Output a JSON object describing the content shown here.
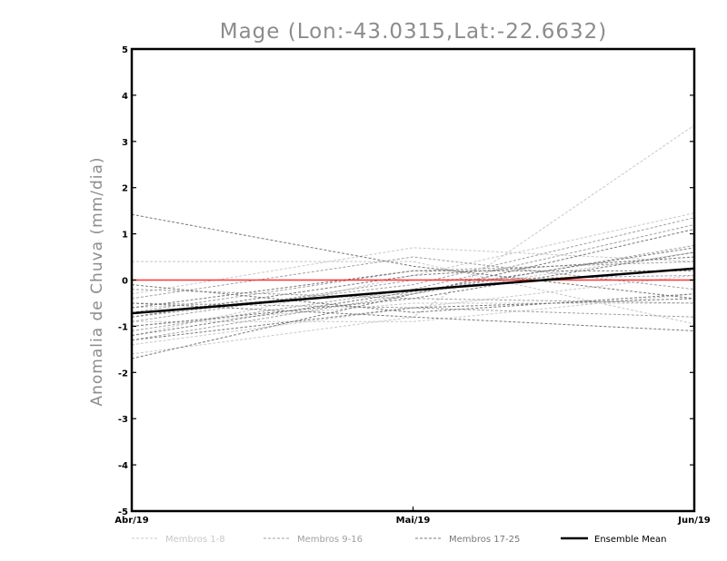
{
  "chart_data": {
    "type": "line",
    "title": "Mage (Lon:-43.0315,Lat:-22.6632)",
    "ylabel": "Anomalia de Chuva (mm/dia)",
    "xlabel": "",
    "categories": [
      "Abr/19",
      "Mai/19",
      "Jun/19"
    ],
    "ylim": [
      -5,
      5
    ],
    "yticks": [
      -5,
      -4,
      -3,
      -2,
      -1,
      0,
      1,
      2,
      3,
      4,
      5
    ],
    "reference_line": {
      "value": 0,
      "color": "#ff3333"
    },
    "groups": [
      {
        "name": "Membros 1-8",
        "color": "#c8c8c8",
        "dash": true,
        "width": 1
      },
      {
        "name": "Membros 9-16",
        "color": "#a0a0a0",
        "dash": true,
        "width": 1
      },
      {
        "name": "Membros 17-25",
        "color": "#787878",
        "dash": true,
        "width": 1
      },
      {
        "name": "Ensemble Mean",
        "color": "#000000",
        "dash": false,
        "width": 2.5
      }
    ],
    "series": [
      {
        "group": 0,
        "values": [
          -1.6,
          -0.8,
          3.35
        ]
      },
      {
        "group": 0,
        "values": [
          -1.2,
          0.1,
          1.45
        ]
      },
      {
        "group": 0,
        "values": [
          0.4,
          0.4,
          -0.95
        ]
      },
      {
        "group": 0,
        "values": [
          -0.9,
          -0.9,
          -0.3
        ]
      },
      {
        "group": 0,
        "values": [
          -0.6,
          -0.3,
          0.6
        ]
      },
      {
        "group": 0,
        "values": [
          -1.0,
          -0.5,
          -0.5
        ]
      },
      {
        "group": 0,
        "values": [
          -0.3,
          0.7,
          0.4
        ]
      },
      {
        "group": 0,
        "values": [
          -1.4,
          -0.6,
          0.1
        ]
      },
      {
        "group": 1,
        "values": [
          -0.8,
          -0.1,
          1.35
        ]
      },
      {
        "group": 1,
        "values": [
          -1.1,
          -0.2,
          1.2
        ]
      },
      {
        "group": 1,
        "values": [
          -0.4,
          0.5,
          -0.2
        ]
      },
      {
        "group": 1,
        "values": [
          -0.2,
          -0.4,
          -0.5
        ]
      },
      {
        "group": 1,
        "values": [
          -1.3,
          -0.3,
          0.75
        ]
      },
      {
        "group": 1,
        "values": [
          -0.7,
          0.2,
          0.4
        ]
      },
      {
        "group": 1,
        "values": [
          -0.5,
          -0.6,
          -0.8
        ]
      },
      {
        "group": 1,
        "values": [
          -0.9,
          0.0,
          0.1
        ]
      },
      {
        "group": 2,
        "values": [
          1.42,
          0.3,
          -0.4
        ]
      },
      {
        "group": 2,
        "values": [
          -1.7,
          -0.3,
          1.1
        ]
      },
      {
        "group": 2,
        "values": [
          -1.2,
          -0.25,
          0.7
        ]
      },
      {
        "group": 2,
        "values": [
          -0.5,
          -0.8,
          -1.1
        ]
      },
      {
        "group": 2,
        "values": [
          -1.0,
          -0.4,
          0.6
        ]
      },
      {
        "group": 2,
        "values": [
          -0.1,
          -0.7,
          -0.3
        ]
      },
      {
        "group": 2,
        "values": [
          -0.8,
          0.1,
          0.5
        ]
      },
      {
        "group": 2,
        "values": [
          -1.3,
          -0.6,
          -0.4
        ]
      },
      {
        "group": 2,
        "values": [
          -0.6,
          0.2,
          0.2
        ]
      },
      {
        "group": 3,
        "values": [
          -0.72,
          -0.22,
          0.25
        ]
      }
    ]
  }
}
